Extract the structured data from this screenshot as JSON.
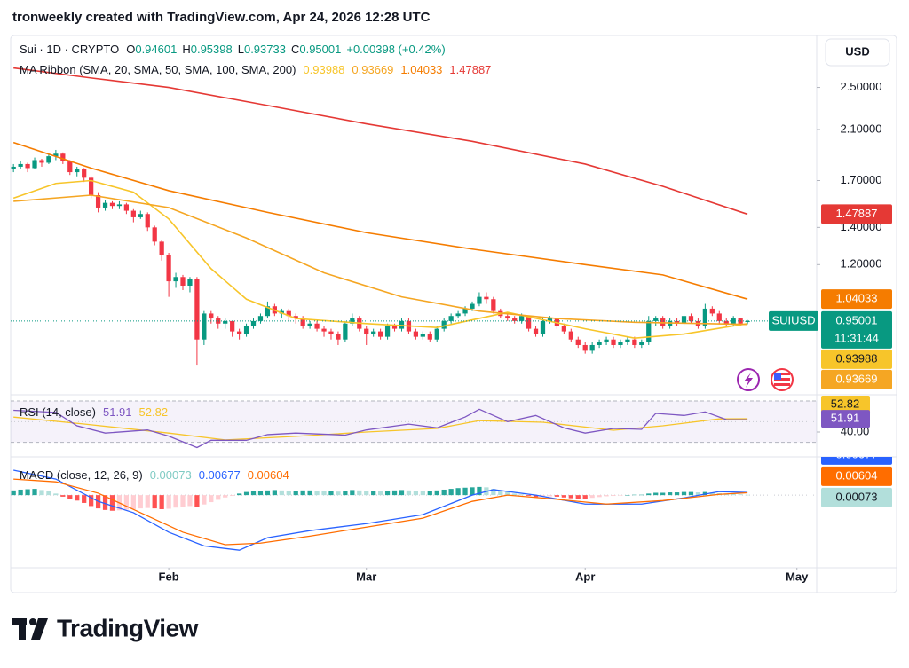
{
  "header": {
    "attribution": "tronweekly created with TradingView.com, Apr 24, 2026 12:28 UTC"
  },
  "footer": {
    "logo": "TradingView"
  },
  "chart_data": {
    "type": "candlestick",
    "symbol": "Sui · 1D · CRYPTO",
    "legend_letters": [
      "O",
      "H",
      "L",
      "C"
    ],
    "change": "+0.00398 (+0.42%)",
    "currency": "USD",
    "ticker": "SUIUSD",
    "countdown": "11:31:44",
    "ma_title": "MA Ribbon (SMA, 20, SMA, 50, SMA, 100, SMA, 200)",
    "up_color": "#089981",
    "down_color": "#f23645",
    "log": true,
    "grid": false,
    "ylim": [
      0.7,
      3.1
    ],
    "yticks": [
      {
        "value": 1.2,
        "label": "1.20000"
      },
      {
        "value": 1.4,
        "label": "1.40000"
      },
      {
        "value": 1.7,
        "label": "1.70000"
      },
      {
        "value": 2.1,
        "label": "2.10000"
      },
      {
        "value": 2.5,
        "label": "2.50000"
      }
    ],
    "xlim": [
      -0.4,
      113.8
    ],
    "xticks": [
      {
        "value": 22,
        "label": "Feb"
      },
      {
        "value": 50,
        "label": "Mar"
      },
      {
        "value": 81,
        "label": "Apr"
      },
      {
        "value": 111,
        "label": "May"
      }
    ],
    "ohlc": [
      [
        1.78,
        1.82,
        1.76,
        1.8
      ],
      [
        1.8,
        1.84,
        1.78,
        1.82
      ],
      [
        1.82,
        1.83,
        1.76,
        1.79
      ],
      [
        1.79,
        1.87,
        1.78,
        1.85
      ],
      [
        1.85,
        1.86,
        1.8,
        1.83
      ],
      [
        1.83,
        1.9,
        1.82,
        1.88
      ],
      [
        1.88,
        1.93,
        1.85,
        1.9
      ],
      [
        1.9,
        1.91,
        1.82,
        1.84
      ],
      [
        1.84,
        1.85,
        1.74,
        1.76
      ],
      [
        1.76,
        1.8,
        1.73,
        1.78
      ],
      [
        1.78,
        1.79,
        1.69,
        1.72
      ],
      [
        1.72,
        1.73,
        1.58,
        1.6
      ],
      [
        1.6,
        1.62,
        1.49,
        1.52
      ],
      [
        1.52,
        1.57,
        1.5,
        1.55
      ],
      [
        1.55,
        1.56,
        1.51,
        1.53
      ],
      [
        1.53,
        1.56,
        1.51,
        1.54
      ],
      [
        1.54,
        1.55,
        1.48,
        1.5
      ],
      [
        1.5,
        1.51,
        1.43,
        1.46
      ],
      [
        1.46,
        1.5,
        1.45,
        1.48
      ],
      [
        1.48,
        1.49,
        1.38,
        1.4
      ],
      [
        1.4,
        1.41,
        1.3,
        1.32
      ],
      [
        1.32,
        1.33,
        1.22,
        1.25
      ],
      [
        1.25,
        1.26,
        1.05,
        1.12
      ],
      [
        1.12,
        1.16,
        1.09,
        1.14
      ],
      [
        1.14,
        1.15,
        1.08,
        1.1
      ],
      [
        1.1,
        1.14,
        1.07,
        1.13
      ],
      [
        1.13,
        1.14,
        0.79,
        0.88
      ],
      [
        0.88,
        0.99,
        0.86,
        0.98
      ],
      [
        0.98,
        0.99,
        0.94,
        0.96
      ],
      [
        0.96,
        0.97,
        0.92,
        0.94
      ],
      [
        0.94,
        0.96,
        0.92,
        0.95
      ],
      [
        0.95,
        0.95,
        0.89,
        0.91
      ],
      [
        0.91,
        0.92,
        0.88,
        0.9
      ],
      [
        0.9,
        0.94,
        0.89,
        0.93
      ],
      [
        0.93,
        0.96,
        0.92,
        0.95
      ],
      [
        0.95,
        0.98,
        0.94,
        0.97
      ],
      [
        0.97,
        1.03,
        0.96,
        1.01
      ],
      [
        1.01,
        1.02,
        0.97,
        0.98
      ],
      [
        0.98,
        1.0,
        0.96,
        0.99
      ],
      [
        0.99,
        1.0,
        0.95,
        0.97
      ],
      [
        0.97,
        0.98,
        0.94,
        0.96
      ],
      [
        0.96,
        0.97,
        0.92,
        0.93
      ],
      [
        0.93,
        0.95,
        0.92,
        0.94
      ],
      [
        0.94,
        0.95,
        0.91,
        0.92
      ],
      [
        0.92,
        0.93,
        0.89,
        0.91
      ],
      [
        0.91,
        0.92,
        0.88,
        0.9
      ],
      [
        0.9,
        0.91,
        0.86,
        0.88
      ],
      [
        0.88,
        0.95,
        0.87,
        0.94
      ],
      [
        0.94,
        0.98,
        0.93,
        0.96
      ],
      [
        0.96,
        0.97,
        0.91,
        0.92
      ],
      [
        0.92,
        0.93,
        0.86,
        0.9
      ],
      [
        0.9,
        0.92,
        0.89,
        0.91
      ],
      [
        0.91,
        0.92,
        0.88,
        0.89
      ],
      [
        0.89,
        0.94,
        0.88,
        0.93
      ],
      [
        0.93,
        0.94,
        0.91,
        0.92
      ],
      [
        0.92,
        0.96,
        0.91,
        0.95
      ],
      [
        0.95,
        0.96,
        0.9,
        0.91
      ],
      [
        0.91,
        0.92,
        0.88,
        0.89
      ],
      [
        0.89,
        0.91,
        0.88,
        0.9
      ],
      [
        0.9,
        0.91,
        0.87,
        0.88
      ],
      [
        0.88,
        0.93,
        0.87,
        0.92
      ],
      [
        0.92,
        0.96,
        0.91,
        0.95
      ],
      [
        0.95,
        0.98,
        0.94,
        0.97
      ],
      [
        0.97,
        0.99,
        0.96,
        0.98
      ],
      [
        0.98,
        1.01,
        0.97,
        1.0
      ],
      [
        1.0,
        1.03,
        0.99,
        1.02
      ],
      [
        1.02,
        1.07,
        1.01,
        1.05
      ],
      [
        1.05,
        1.07,
        1.02,
        1.04
      ],
      [
        1.04,
        1.05,
        0.98,
        0.99
      ],
      [
        0.99,
        1.0,
        0.96,
        0.97
      ],
      [
        0.97,
        0.98,
        0.95,
        0.96
      ],
      [
        0.96,
        0.97,
        0.94,
        0.95
      ],
      [
        0.95,
        0.98,
        0.94,
        0.97
      ],
      [
        0.97,
        0.97,
        0.91,
        0.92
      ],
      [
        0.92,
        0.93,
        0.89,
        0.9
      ],
      [
        0.9,
        0.96,
        0.89,
        0.95
      ],
      [
        0.95,
        0.97,
        0.94,
        0.96
      ],
      [
        0.96,
        0.96,
        0.92,
        0.93
      ],
      [
        0.93,
        0.94,
        0.9,
        0.91
      ],
      [
        0.91,
        0.92,
        0.87,
        0.88
      ],
      [
        0.88,
        0.89,
        0.85,
        0.86
      ],
      [
        0.86,
        0.87,
        0.83,
        0.84
      ],
      [
        0.84,
        0.87,
        0.83,
        0.86
      ],
      [
        0.86,
        0.88,
        0.85,
        0.87
      ],
      [
        0.87,
        0.89,
        0.86,
        0.88
      ],
      [
        0.88,
        0.89,
        0.85,
        0.86
      ],
      [
        0.86,
        0.88,
        0.85,
        0.87
      ],
      [
        0.87,
        0.89,
        0.86,
        0.88
      ],
      [
        0.88,
        0.89,
        0.85,
        0.86
      ],
      [
        0.86,
        0.88,
        0.85,
        0.87
      ],
      [
        0.87,
        0.97,
        0.86,
        0.95
      ],
      [
        0.95,
        0.97,
        0.93,
        0.96
      ],
      [
        0.96,
        0.97,
        0.92,
        0.93
      ],
      [
        0.93,
        0.96,
        0.92,
        0.95
      ],
      [
        0.95,
        0.96,
        0.93,
        0.94
      ],
      [
        0.94,
        0.98,
        0.93,
        0.97
      ],
      [
        0.97,
        0.98,
        0.94,
        0.95
      ],
      [
        0.95,
        0.96,
        0.92,
        0.93
      ],
      [
        0.93,
        1.02,
        0.92,
        1.0
      ],
      [
        1.0,
        1.01,
        0.97,
        0.98
      ],
      [
        0.98,
        0.99,
        0.94,
        0.95
      ],
      [
        0.95,
        0.96,
        0.93,
        0.94
      ],
      [
        0.94,
        0.97,
        0.93,
        0.96
      ],
      [
        0.96,
        0.96,
        0.93,
        0.94
      ],
      [
        0.94601,
        0.95398,
        0.93733,
        0.95001
      ]
    ],
    "series": [
      {
        "color": "#f7c52a",
        "x": [
          0,
          6,
          11,
          17,
          22,
          28,
          33,
          40,
          50,
          60,
          70,
          81,
          88,
          95,
          104
        ],
        "values": [
          1.58,
          1.68,
          1.7,
          1.62,
          1.45,
          1.18,
          1.04,
          0.96,
          0.94,
          0.925,
          0.985,
          0.92,
          0.885,
          0.9,
          0.93988
        ]
      },
      {
        "color": "#f5a623",
        "x": [
          0,
          11,
          22,
          33,
          44,
          55,
          66,
          77,
          88,
          104
        ],
        "values": [
          1.56,
          1.6,
          1.52,
          1.34,
          1.16,
          1.05,
          0.99,
          0.96,
          0.945,
          0.93669
        ]
      },
      {
        "color": "#f57c00",
        "x": [
          0,
          11,
          22,
          36,
          50,
          65,
          81,
          92,
          104
        ],
        "values": [
          1.99,
          1.79,
          1.63,
          1.49,
          1.37,
          1.28,
          1.2,
          1.15,
          1.04033
        ]
      },
      {
        "color": "#e53935",
        "x": [
          0,
          11,
          22,
          36,
          50,
          65,
          81,
          92,
          104
        ],
        "values": [
          2.71,
          2.6,
          2.5,
          2.32,
          2.15,
          2.0,
          1.82,
          1.66,
          1.47887
        ]
      }
    ],
    "rsi": {
      "title": "RSI (14, close)",
      "ylim": [
        16,
        76
      ],
      "bands": [
        30,
        70
      ],
      "middle": 50,
      "yticks": [
        {
          "value": 40,
          "label": "40.00"
        }
      ],
      "series": [
        {
          "color": "#7e57c2",
          "x": [
            0,
            6,
            9,
            13,
            19,
            22,
            26,
            28,
            33,
            36,
            40,
            47,
            50,
            56,
            60,
            64,
            66,
            70,
            74,
            78,
            81,
            85,
            89,
            91,
            95,
            98,
            101,
            104
          ],
          "values": [
            61,
            59,
            46,
            39,
            42,
            36,
            25,
            32,
            32,
            37.5,
            39,
            37,
            42,
            47.6,
            44,
            54.5,
            62,
            50,
            56,
            44,
            39,
            43.4,
            42.6,
            58,
            56,
            59.5,
            52,
            51.91
          ]
        },
        {
          "color": "#f7c52a",
          "x": [
            0,
            10,
            22,
            30,
            40,
            50,
            60,
            66,
            75,
            85,
            92,
            100,
            104
          ],
          "values": [
            54.4,
            47.7,
            39,
            32.4,
            35.8,
            40,
            43.4,
            51,
            49.4,
            41.7,
            46,
            52.7,
            52.82
          ]
        }
      ]
    },
    "macd": {
      "title": "MACD (close, 12, 26, 9)",
      "ylim": [
        -0.186,
        0.098
      ],
      "hist_colors": [
        "#26a69a",
        "#b2dfdb",
        "#ff5252",
        "#ffcdd2"
      ],
      "hist": [
        0.012,
        0.014,
        0.015,
        0.016,
        0.013,
        0.01,
        0.004,
        -0.004,
        -0.01,
        -0.014,
        -0.02,
        -0.028,
        -0.034,
        -0.038,
        -0.04,
        -0.039,
        -0.037,
        -0.036,
        -0.034,
        -0.033,
        -0.034,
        -0.036,
        -0.035,
        -0.032,
        -0.03,
        -0.028,
        -0.03,
        -0.024,
        -0.018,
        -0.012,
        -0.006,
        -0.002,
        0.004,
        0.008,
        0.01,
        0.011,
        0.012,
        0.013,
        0.012,
        0.011,
        0.011,
        0.012,
        0.012,
        0.011,
        0.01,
        0.01,
        0.009,
        0.011,
        0.013,
        0.012,
        0.011,
        0.011,
        0.01,
        0.011,
        0.012,
        0.013,
        0.012,
        0.011,
        0.01,
        0.01,
        0.012,
        0.014,
        0.016,
        0.018,
        0.019,
        0.02,
        0.021,
        0.02,
        0.016,
        0.012,
        0.008,
        0.004,
        0.002,
        -0.002,
        -0.005,
        -0.004,
        -0.003,
        -0.004,
        -0.006,
        -0.008,
        -0.009,
        -0.009,
        -0.007,
        -0.005,
        -0.003,
        -0.002,
        -0.001,
        0.0,
        0.001,
        0.001,
        0.004,
        0.006,
        0.006,
        0.007,
        0.007,
        0.008,
        0.008,
        0.007,
        0.008,
        0.007,
        0.005,
        0.004,
        0.003,
        0.002,
        0.00073
      ],
      "series": [
        {
          "color": "#2962ff",
          "x": [
            0,
            6,
            12,
            17,
            22,
            27,
            32,
            36,
            42,
            50,
            58,
            65,
            68,
            74,
            81,
            89,
            95,
            100,
            104
          ],
          "values": [
            0.064,
            0.041,
            -0.016,
            -0.045,
            -0.095,
            -0.13,
            -0.141,
            -0.109,
            -0.091,
            -0.073,
            -0.05,
            0,
            0.014,
            0,
            -0.023,
            -0.023,
            -0.007,
            0.009,
            0.00677
          ]
        },
        {
          "color": "#ff6d00",
          "x": [
            0,
            6,
            12,
            18,
            24,
            30,
            35,
            42,
            50,
            58,
            65,
            70,
            76,
            84,
            92,
            100,
            104
          ],
          "values": [
            0.041,
            0.034,
            0.005,
            -0.045,
            -0.095,
            -0.127,
            -0.123,
            -0.105,
            -0.082,
            -0.059,
            -0.016,
            0,
            -0.009,
            -0.023,
            -0.014,
            0.002,
            0.00604
          ]
        }
      ]
    }
  }
}
